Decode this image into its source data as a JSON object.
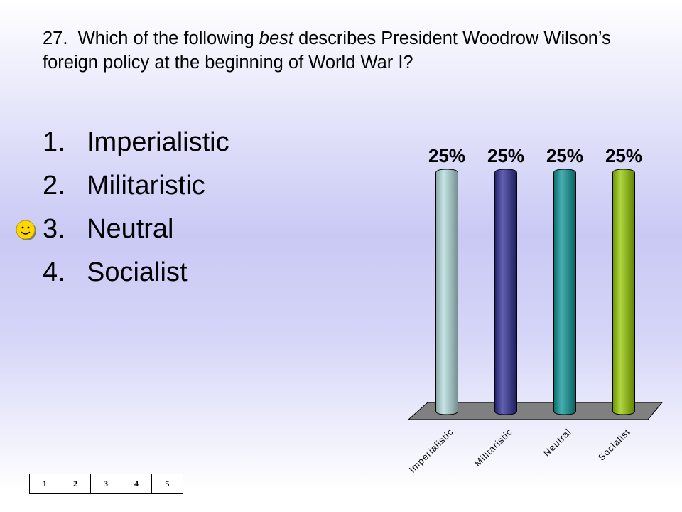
{
  "question": {
    "number": "27.",
    "before": "Which of the following",
    "emphasis": "best",
    "after": "describes President Woodrow Wilson’s foreign policy at the beginning of World War I?"
  },
  "options": [
    {
      "number": "1.",
      "label": "Imperialistic"
    },
    {
      "number": "2.",
      "label": "Militaristic"
    },
    {
      "number": "3.",
      "label": "Neutral"
    },
    {
      "number": "4.",
      "label": "Socialist"
    }
  ],
  "correct_marker": {
    "icon": "smiley-icon",
    "option_index": 2,
    "color": "#ffd700"
  },
  "chart_data": {
    "type": "bar",
    "categories": [
      "Imperialistic",
      "Militaristic",
      "Neutral",
      "Socialist"
    ],
    "values": [
      25,
      25,
      25,
      25
    ],
    "data_labels": [
      "25%",
      "25%",
      "25%",
      "25%"
    ],
    "colors": [
      "#b4dcdc",
      "#2c2c94",
      "#0a9494",
      "#94c800"
    ],
    "ylim": [
      0,
      25
    ],
    "grid": false,
    "legend": "none"
  },
  "pager": [
    "1",
    "2",
    "3",
    "4",
    "5"
  ]
}
